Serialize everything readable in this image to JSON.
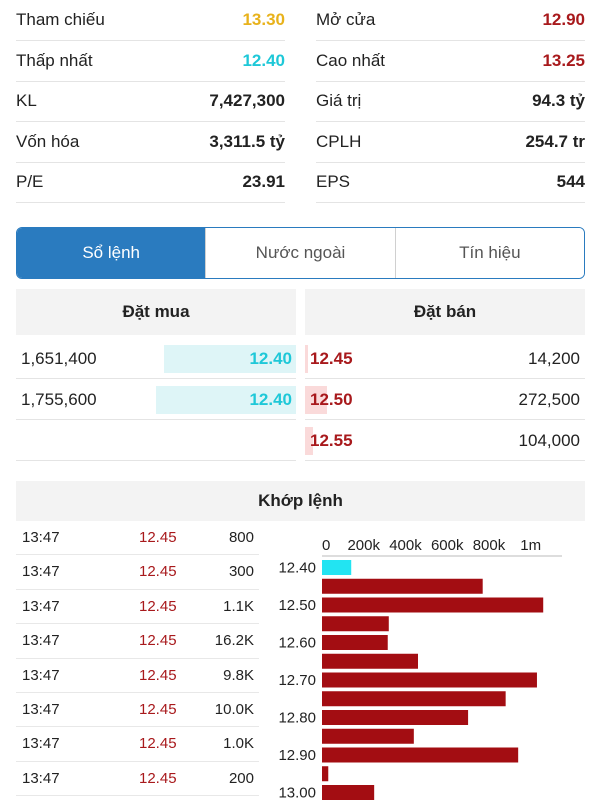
{
  "stats": [
    {
      "left_label": "Tham chiếu",
      "left_value": "13.30",
      "left_color": "#e8b21b",
      "right_label": "Mở cửa",
      "right_value": "12.90",
      "right_color": "#a8191c"
    },
    {
      "left_label": "Thấp nhất",
      "left_value": "12.40",
      "left_color": "#1ec8d8",
      "right_label": "Cao nhất",
      "right_value": "13.25",
      "right_color": "#a8191c"
    },
    {
      "left_label": "KL",
      "left_value": "7,427,300",
      "left_color": "#222222",
      "right_label": "Giá trị",
      "right_value": "94.3 tỷ",
      "right_color": "#222222"
    },
    {
      "left_label": "Vốn hóa",
      "left_value": "3,311.5 tỷ",
      "left_color": "#222222",
      "right_label": "CPLH",
      "right_value": "254.7 tr",
      "right_color": "#222222"
    },
    {
      "left_label": "P/E",
      "left_value": "23.91",
      "left_color": "#222222",
      "right_label": "EPS",
      "right_value": "544",
      "right_color": "#222222"
    }
  ],
  "tabs": [
    {
      "label": "Sổ lệnh",
      "active": true
    },
    {
      "label": "Nước ngoài",
      "active": false
    },
    {
      "label": "Tín hiệu",
      "active": false
    }
  ],
  "order_book": {
    "buy_title": "Đặt mua",
    "sell_title": "Đặt bán",
    "rows": [
      {
        "buy_volume": "1,651,400",
        "buy_price": "12.40",
        "buy_fill": 0.47,
        "sell_price": "12.45",
        "sell_volume": "14,200",
        "sell_fill": 0.01
      },
      {
        "buy_volume": "1,755,600",
        "buy_price": "12.40",
        "buy_fill": 0.5,
        "sell_price": "12.50",
        "sell_volume": "272,500",
        "sell_fill": 0.08
      },
      {
        "buy_volume": "",
        "buy_price": "",
        "buy_fill": 0,
        "sell_price": "12.55",
        "sell_volume": "104,000",
        "sell_fill": 0.03
      }
    ]
  },
  "matched": {
    "title": "Khớp lệnh",
    "trades": [
      {
        "time": "13:47",
        "price": "12.45",
        "volume": "800"
      },
      {
        "time": "13:47",
        "price": "12.45",
        "volume": "300"
      },
      {
        "time": "13:47",
        "price": "12.45",
        "volume": "1.1K"
      },
      {
        "time": "13:47",
        "price": "12.45",
        "volume": "16.2K"
      },
      {
        "time": "13:47",
        "price": "12.45",
        "volume": "9.8K"
      },
      {
        "time": "13:47",
        "price": "12.45",
        "volume": "10.0K"
      },
      {
        "time": "13:47",
        "price": "12.45",
        "volume": "1.0K"
      },
      {
        "time": "13:47",
        "price": "12.45",
        "volume": "200"
      }
    ]
  },
  "chart_data": {
    "type": "bar",
    "orientation": "horizontal",
    "x_ticks": [
      "0",
      "200k",
      "400k",
      "600k",
      "800k",
      "1m"
    ],
    "xlim": [
      0,
      1150000
    ],
    "y_tick_labels": [
      "12.40",
      "12.50",
      "12.60",
      "12.70",
      "12.80",
      "12.90",
      "13.00"
    ],
    "categories": [
      "12.40",
      "12.45",
      "12.50",
      "12.55",
      "12.60",
      "12.65",
      "12.70",
      "12.75",
      "12.80",
      "12.85",
      "12.90",
      "12.95",
      "13.00"
    ],
    "values": [
      140000,
      770000,
      1060000,
      320000,
      315000,
      460000,
      1030000,
      880000,
      700000,
      440000,
      940000,
      30000,
      250000
    ],
    "colors": [
      "#22e4f2",
      "#a30d12",
      "#a30d12",
      "#a30d12",
      "#a30d12",
      "#a30d12",
      "#a30d12",
      "#a30d12",
      "#a30d12",
      "#a30d12",
      "#a30d12",
      "#a30d12",
      "#a30d12"
    ]
  }
}
